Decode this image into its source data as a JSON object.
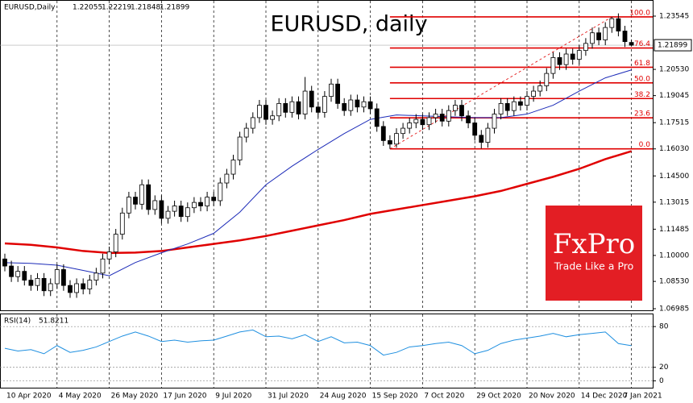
{
  "chart_data": {
    "type": "candlestick",
    "title": "EURUSD, daily",
    "symbol": "EURUSD,Daily",
    "up_color": "#ffffff",
    "down_color": "#000000",
    "categories": [
      "10 Apr 2020",
      null,
      null,
      null,
      null,
      null,
      null,
      null,
      "4 May 2020",
      null,
      null,
      null,
      null,
      null,
      null,
      null,
      "26 May 2020",
      null,
      null,
      null,
      null,
      null,
      null,
      null,
      "17 Jun 2020",
      null,
      null,
      null,
      null,
      null,
      null,
      null,
      "9 Jul 2020",
      null,
      null,
      null,
      null,
      null,
      null,
      null,
      "31 Jul 2020",
      null,
      null,
      null,
      null,
      null,
      null,
      null,
      "24 Aug 2020",
      null,
      null,
      null,
      null,
      null,
      null,
      null,
      "15 Sep 2020",
      null,
      null,
      null,
      null,
      null,
      null,
      null,
      "7 Oct 2020",
      null,
      null,
      null,
      null,
      null,
      null,
      null,
      "29 Oct 2020",
      null,
      null,
      null,
      null,
      null,
      null,
      null,
      "20 Nov 2020",
      null,
      null,
      null,
      null,
      null,
      null,
      null,
      "14 Dec 2020",
      null,
      null,
      null,
      null,
      null,
      null,
      null,
      "7 Jan 2021"
    ],
    "ohlc": [
      [
        1.098,
        1.101,
        1.091,
        1.094
      ],
      [
        1.094,
        1.097,
        1.085,
        1.088
      ],
      [
        1.088,
        1.094,
        1.085,
        1.091
      ],
      [
        1.091,
        1.094,
        1.083,
        1.086
      ],
      [
        1.086,
        1.089,
        1.08,
        1.083
      ],
      [
        1.083,
        1.09,
        1.08,
        1.087
      ],
      [
        1.087,
        1.09,
        1.077,
        1.08
      ],
      [
        1.08,
        1.087,
        1.077,
        1.084
      ],
      [
        1.084,
        1.095,
        1.081,
        1.092
      ],
      [
        1.092,
        1.095,
        1.08,
        1.083
      ],
      [
        1.083,
        1.086,
        1.076,
        1.079
      ],
      [
        1.079,
        1.087,
        1.076,
        1.084
      ],
      [
        1.084,
        1.087,
        1.078,
        1.081
      ],
      [
        1.081,
        1.089,
        1.078,
        1.086
      ],
      [
        1.086,
        1.093,
        1.083,
        1.09
      ],
      [
        1.09,
        1.101,
        1.087,
        1.098
      ],
      [
        1.098,
        1.105,
        1.095,
        1.102
      ],
      [
        1.102,
        1.115,
        1.099,
        1.112
      ],
      [
        1.112,
        1.127,
        1.109,
        1.124
      ],
      [
        1.124,
        1.136,
        1.121,
        1.133
      ],
      [
        1.133,
        1.136,
        1.126,
        1.129
      ],
      [
        1.129,
        1.143,
        1.126,
        1.14
      ],
      [
        1.14,
        1.143,
        1.123,
        1.126
      ],
      [
        1.126,
        1.134,
        1.123,
        1.131
      ],
      [
        1.131,
        1.134,
        1.118,
        1.121
      ],
      [
        1.121,
        1.128,
        1.118,
        1.125
      ],
      [
        1.125,
        1.131,
        1.122,
        1.128
      ],
      [
        1.128,
        1.131,
        1.119,
        1.122
      ],
      [
        1.122,
        1.13,
        1.119,
        1.127
      ],
      [
        1.127,
        1.133,
        1.124,
        1.13
      ],
      [
        1.13,
        1.133,
        1.125,
        1.128
      ],
      [
        1.128,
        1.136,
        1.125,
        1.133
      ],
      [
        1.133,
        1.136,
        1.128,
        1.131
      ],
      [
        1.131,
        1.144,
        1.128,
        1.141
      ],
      [
        1.141,
        1.149,
        1.138,
        1.146
      ],
      [
        1.146,
        1.157,
        1.143,
        1.154
      ],
      [
        1.154,
        1.17,
        1.151,
        1.167
      ],
      [
        1.167,
        1.175,
        1.164,
        1.172
      ],
      [
        1.172,
        1.181,
        1.169,
        1.178
      ],
      [
        1.178,
        1.188,
        1.175,
        1.185
      ],
      [
        1.185,
        1.188,
        1.174,
        1.177
      ],
      [
        1.177,
        1.182,
        1.174,
        1.179
      ],
      [
        1.179,
        1.189,
        1.176,
        1.186
      ],
      [
        1.186,
        1.189,
        1.178,
        1.181
      ],
      [
        1.181,
        1.19,
        1.178,
        1.187
      ],
      [
        1.187,
        1.19,
        1.177,
        1.18
      ],
      [
        1.18,
        1.201,
        1.177,
        1.193
      ],
      [
        1.193,
        1.196,
        1.181,
        1.184
      ],
      [
        1.184,
        1.187,
        1.178,
        1.181
      ],
      [
        1.181,
        1.193,
        1.178,
        1.19
      ],
      [
        1.19,
        1.2,
        1.187,
        1.197
      ],
      [
        1.197,
        1.2,
        1.183,
        1.186
      ],
      [
        1.186,
        1.189,
        1.179,
        1.182
      ],
      [
        1.182,
        1.191,
        1.179,
        1.188
      ],
      [
        1.188,
        1.191,
        1.181,
        1.184
      ],
      [
        1.184,
        1.19,
        1.181,
        1.187
      ],
      [
        1.187,
        1.19,
        1.18,
        1.183
      ],
      [
        1.183,
        1.186,
        1.17,
        1.173
      ],
      [
        1.173,
        1.176,
        1.162,
        1.165
      ],
      [
        1.165,
        1.168,
        1.1603,
        1.163
      ],
      [
        1.163,
        1.172,
        1.161,
        1.169
      ],
      [
        1.169,
        1.175,
        1.166,
        1.172
      ],
      [
        1.172,
        1.178,
        1.169,
        1.175
      ],
      [
        1.175,
        1.18,
        1.172,
        1.177
      ],
      [
        1.177,
        1.18,
        1.171,
        1.174
      ],
      [
        1.174,
        1.181,
        1.171,
        1.178
      ],
      [
        1.178,
        1.183,
        1.175,
        1.18
      ],
      [
        1.18,
        1.183,
        1.173,
        1.176
      ],
      [
        1.176,
        1.185,
        1.173,
        1.182
      ],
      [
        1.182,
        1.188,
        1.179,
        1.185
      ],
      [
        1.185,
        1.188,
        1.176,
        1.179
      ],
      [
        1.179,
        1.182,
        1.172,
        1.175
      ],
      [
        1.175,
        1.178,
        1.165,
        1.168
      ],
      [
        1.168,
        1.171,
        1.1605,
        1.164
      ],
      [
        1.164,
        1.175,
        1.161,
        1.172
      ],
      [
        1.172,
        1.183,
        1.169,
        1.18
      ],
      [
        1.18,
        1.189,
        1.177,
        1.186
      ],
      [
        1.186,
        1.189,
        1.179,
        1.182
      ],
      [
        1.182,
        1.19,
        1.179,
        1.187
      ],
      [
        1.187,
        1.19,
        1.182,
        1.185
      ],
      [
        1.185,
        1.193,
        1.182,
        1.19
      ],
      [
        1.19,
        1.196,
        1.187,
        1.193
      ],
      [
        1.193,
        1.199,
        1.19,
        1.196
      ],
      [
        1.196,
        1.206,
        1.193,
        1.203
      ],
      [
        1.203,
        1.215,
        1.2,
        1.212
      ],
      [
        1.212,
        1.215,
        1.205,
        1.208
      ],
      [
        1.208,
        1.217,
        1.205,
        1.214
      ],
      [
        1.214,
        1.217,
        1.208,
        1.211
      ],
      [
        1.211,
        1.219,
        1.208,
        1.216
      ],
      [
        1.216,
        1.223,
        1.213,
        1.22
      ],
      [
        1.22,
        1.229,
        1.217,
        1.226
      ],
      [
        1.226,
        1.229,
        1.219,
        1.222
      ],
      [
        1.222,
        1.232,
        1.219,
        1.229
      ],
      [
        1.229,
        1.235,
        1.226,
        1.234
      ],
      [
        1.234,
        1.237,
        1.224,
        1.227
      ],
      [
        1.227,
        1.23,
        1.218,
        1.221
      ],
      [
        1.22055,
        1.22219,
        1.21848,
        1.21899
      ]
    ],
    "ylim": [
      1.06894,
      1.24457
    ],
    "yticks": [
      1.23545,
      {
        "value": 1.2053,
        "label": "1.20530"
      },
      1.19045,
      1.17515,
      {
        "value": 1.1603,
        "label": "1.16030"
      },
      {
        "value": 1.145,
        "label": "1.14500"
      },
      1.13015,
      1.11485,
      {
        "value": 1.1,
        "label": "1.10000"
      },
      {
        "value": 1.0853,
        "label": "1.08530"
      },
      1.06985
    ],
    "current_price": 1.21899,
    "moving_averages": [
      {
        "color": "#e00000",
        "width": 2.5,
        "x": [
          0,
          4,
          8,
          12,
          16,
          20,
          24,
          28,
          32,
          36,
          40,
          44,
          48,
          52,
          56,
          60,
          64,
          68,
          72,
          76,
          80,
          84,
          88,
          92,
          96
        ],
        "values": [
          1.1068,
          1.106,
          1.1045,
          1.1025,
          1.1014,
          1.1016,
          1.1025,
          1.1045,
          1.1065,
          1.1085,
          1.111,
          1.114,
          1.117,
          1.12,
          1.1235,
          1.126,
          1.1285,
          1.131,
          1.1335,
          1.1365,
          1.1405,
          1.1445,
          1.149,
          1.1545,
          1.159
        ]
      },
      {
        "color": "#1c2bb8",
        "width": 1,
        "x": [
          0,
          4,
          8,
          12,
          16,
          20,
          24,
          28,
          32,
          36,
          40,
          44,
          48,
          52,
          56,
          60,
          64,
          68,
          72,
          76,
          80,
          84,
          88,
          92,
          96
        ],
        "values": [
          1.0959,
          1.0955,
          1.0945,
          1.0915,
          1.0885,
          1.096,
          1.1015,
          1.1065,
          1.1125,
          1.1245,
          1.14,
          1.1505,
          1.16,
          1.169,
          1.177,
          1.1795,
          1.179,
          1.1785,
          1.178,
          1.178,
          1.18,
          1.185,
          1.193,
          1.2005,
          1.205
        ]
      }
    ],
    "fib_color": "#e00000",
    "fib_anchor": [
      59,
      93
    ],
    "fib_levels": [
      {
        "label": "0.0",
        "price": 1.1603
      },
      {
        "label": "23.6",
        "price": 1.1779
      },
      {
        "label": "38.2",
        "price": 1.1888
      },
      {
        "label": "50.0",
        "price": 1.19765
      },
      {
        "label": "61.8",
        "price": 1.2065
      },
      {
        "label": "76.4",
        "price": 1.2174
      },
      {
        "label": "100.0",
        "price": 1.235
      }
    ],
    "indicator": {
      "type": "line",
      "label": "RSI(14)",
      "color": "#1e8fe0",
      "ylim": [
        -10,
        98
      ],
      "yticks": [
        80,
        20,
        0
      ],
      "x": [
        0,
        2,
        4,
        6,
        8,
        10,
        12,
        14,
        16,
        18,
        20,
        22,
        24,
        26,
        28,
        30,
        32,
        34,
        36,
        38,
        40,
        42,
        44,
        46,
        48,
        50,
        52,
        54,
        56,
        58,
        60,
        62,
        64,
        66,
        68,
        70,
        72,
        74,
        76,
        78,
        80,
        82,
        84,
        86,
        88,
        90,
        92,
        94,
        96
      ],
      "values": [
        48,
        44,
        46,
        40,
        52,
        42,
        45,
        50,
        58,
        66,
        72,
        66,
        58,
        60,
        57,
        59,
        60,
        66,
        72,
        75,
        65,
        66,
        62,
        68,
        58,
        65,
        56,
        57,
        52,
        38,
        42,
        50,
        52,
        55,
        57,
        52,
        40,
        45,
        55,
        60,
        63,
        66,
        70,
        65,
        68,
        70,
        72,
        55,
        51.8211
      ]
    }
  },
  "logo": {
    "brand": "FxPro",
    "tagline": "Trade Like a Pro",
    "color": "#e31e24"
  }
}
